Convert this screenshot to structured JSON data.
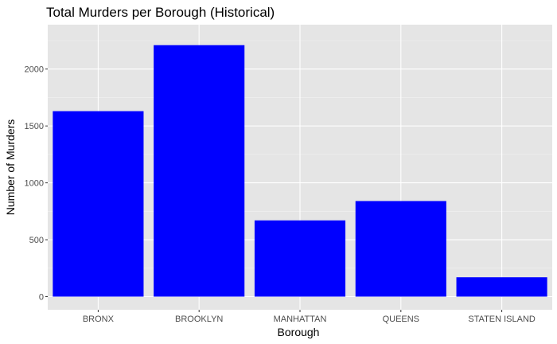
{
  "chart_data": {
    "type": "bar",
    "title": "Total Murders per Borough (Historical)",
    "xlabel": "Borough",
    "ylabel": "Number of Murders",
    "categories": [
      "BRONX",
      "BROOKLYN",
      "MANHATTAN",
      "QUEENS",
      "STATEN ISLAND"
    ],
    "values": [
      1630,
      2210,
      670,
      840,
      170
    ],
    "ylim": [
      0,
      2320
    ],
    "yticks": [
      0,
      500,
      1000,
      1500,
      2000
    ],
    "ytick_labels": [
      "0",
      "500",
      "1000",
      "1500",
      "2000"
    ],
    "grid": true,
    "legend": "none",
    "bar_color": "#0000ff",
    "panel_background": "#e5e5e5"
  }
}
